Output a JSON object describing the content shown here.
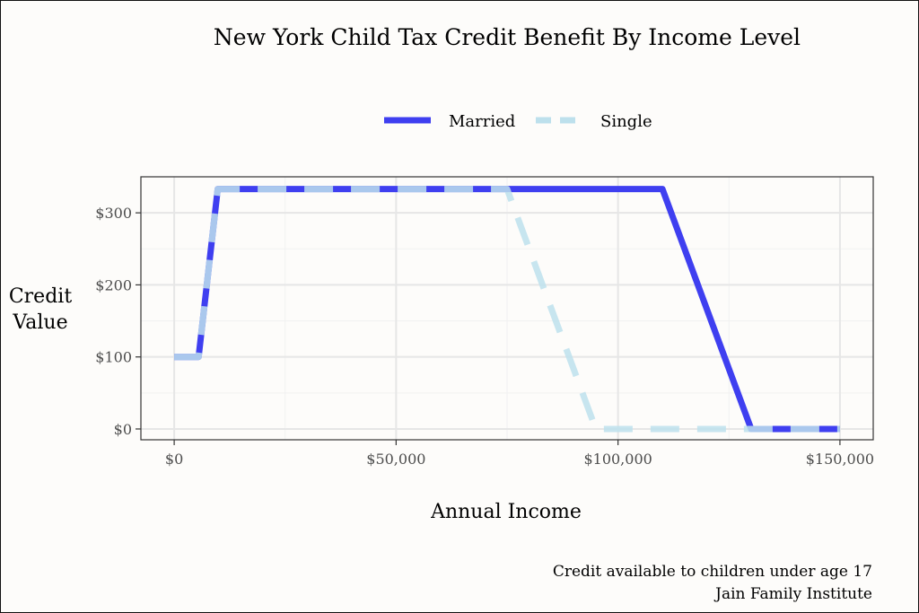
{
  "chart_data": {
    "type": "line",
    "title": "New York Child Tax Credit Benefit By Income Level",
    "xlabel": "Annual Income",
    "ylabel_lines": [
      "Credit",
      "Value"
    ],
    "xlim": [
      -7500,
      157500
    ],
    "ylim": [
      -15,
      350
    ],
    "x_ticks": [
      {
        "value": 0,
        "label": "$0"
      },
      {
        "value": 50000,
        "label": "$50,000"
      },
      {
        "value": 100000,
        "label": "$100,000"
      },
      {
        "value": 150000,
        "label": "$150,000"
      }
    ],
    "y_ticks": [
      {
        "value": 0,
        "label": "$0"
      },
      {
        "value": 100,
        "label": "$100"
      },
      {
        "value": 200,
        "label": "$200"
      },
      {
        "value": 300,
        "label": "$300"
      }
    ],
    "grid": true,
    "legend": "top",
    "series": [
      {
        "name": "Married",
        "color": "#3f3ff0",
        "style": "solid",
        "x": [
          0,
          5500,
          9800,
          110000,
          130000,
          150000
        ],
        "y": [
          100,
          100,
          333,
          333,
          0,
          0
        ]
      },
      {
        "name": "Single",
        "color": "#bde0ec",
        "style": "dashed",
        "x": [
          0,
          5500,
          9800,
          75000,
          95000,
          150000
        ],
        "y": [
          100,
          100,
          333,
          333,
          0,
          0
        ]
      }
    ],
    "caption_lines": [
      "Credit available to children under age 17",
      "Jain Family Institute"
    ]
  }
}
